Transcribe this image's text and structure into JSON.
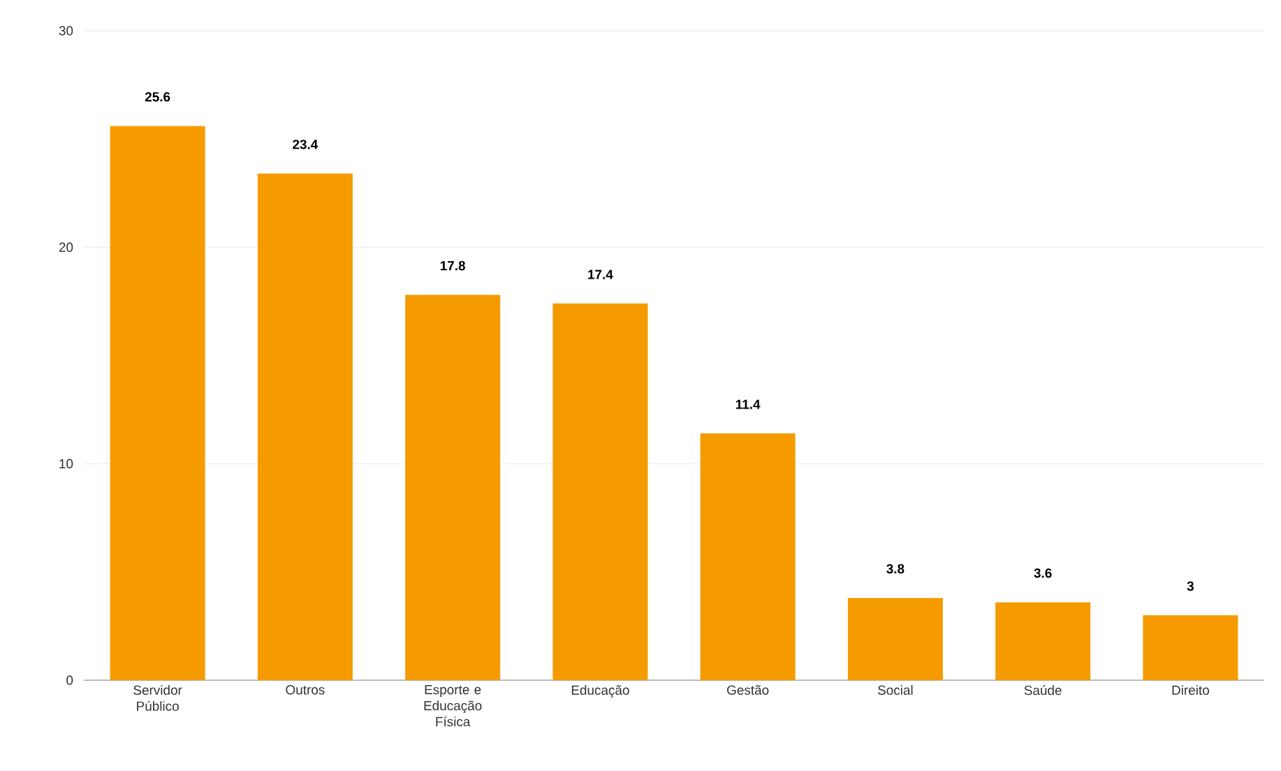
{
  "chart_data": {
    "type": "bar",
    "categories": [
      "Servidor Público",
      "Outros",
      "Esporte e Educação Física",
      "Educação",
      "Gestão",
      "Social",
      "Saúde",
      "Direito"
    ],
    "values": [
      25.6,
      23.4,
      17.8,
      17.4,
      11.4,
      3.8,
      3.6,
      3
    ],
    "color": "#f59b00",
    "ylim": [
      0,
      30
    ],
    "yticks": [
      0,
      10,
      20,
      30
    ],
    "grid": "y",
    "data_labels": true
  }
}
